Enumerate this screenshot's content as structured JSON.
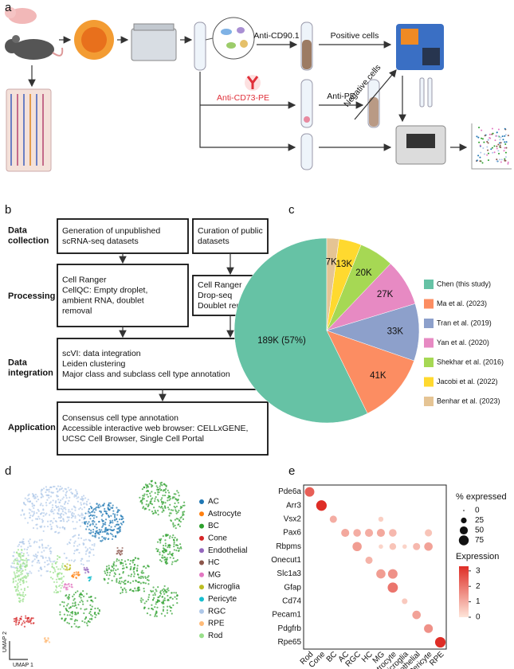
{
  "figure": {
    "panel_a": {
      "label": "a",
      "anti_cd90": "Anti-CD90.1",
      "positive": "Positive cells",
      "anti_cd73": "Anti-CD73-PE",
      "anti_pe": "Anti-PE",
      "negative": "Negative cells"
    },
    "panel_b": {
      "label": "b",
      "row_labels": [
        [
          "Data",
          "collection"
        ],
        [
          "Processing"
        ],
        [
          "Data",
          "integration"
        ],
        [
          "Application"
        ]
      ],
      "boxes": [
        [
          "Generation of unpublished",
          "scRNA-seq datasets"
        ],
        [
          "Curation of public",
          "datasets"
        ],
        [
          "Cell Ranger",
          "CellQC: Empty droplet,",
          "ambient RNA, doublet",
          "removal"
        ],
        [
          "Cell Ranger",
          "Drop-seq",
          "Doublet removal"
        ],
        [
          "scVI: data integration",
          "Leiden clustering",
          "Major class and subclass cell type annotation"
        ],
        [
          "Consensus cell type annotation",
          "Accessible interactive web browser: CELLxGENE,",
          "UCSC Cell Browser, Single Cell Portal"
        ]
      ]
    },
    "panel_d": {
      "label": "d",
      "x_label": "UMAP 1",
      "y_label": "UMAP 2",
      "legend": [
        {
          "name": "AC",
          "color": "#1f77b4"
        },
        {
          "name": "Astrocyte",
          "color": "#ff7f0e"
        },
        {
          "name": "BC",
          "color": "#2ca02c"
        },
        {
          "name": "Cone",
          "color": "#d62728"
        },
        {
          "name": "Endothelial",
          "color": "#9467bd"
        },
        {
          "name": "HC",
          "color": "#8c564b"
        },
        {
          "name": "MG",
          "color": "#e377c2"
        },
        {
          "name": "Microglia",
          "color": "#bcbd22"
        },
        {
          "name": "Pericyte",
          "color": "#17becf"
        },
        {
          "name": "RGC",
          "color": "#aec7e8"
        },
        {
          "name": "RPE",
          "color": "#ffbb78"
        },
        {
          "name": "Rod",
          "color": "#98df8a"
        }
      ]
    }
  },
  "chart_data": [
    {
      "type": "pie",
      "label": "c",
      "categories": [
        "Chen (this study)",
        "Ma et al. (2023)",
        "Tran et al. (2019)",
        "Yan et al. (2020)",
        "Shekhar et al. (2016)",
        "Jacobi et al. (2022)",
        "Benhar et al. (2023)"
      ],
      "values": [
        189,
        41,
        33,
        27,
        20,
        13,
        7
      ],
      "value_labels": [
        "189K (57%)",
        "41K",
        "33K",
        "27K",
        "20K",
        "13K",
        "7K"
      ],
      "colors": [
        "#66c2a5",
        "#fc8d62",
        "#8da0cb",
        "#e78ac3",
        "#a6d854",
        "#ffd92f",
        "#e5c494"
      ]
    },
    {
      "type": "dotplot",
      "label": "e",
      "x": [
        "Rod",
        "Cone",
        "BC",
        "AC",
        "RGC",
        "HC",
        "MG",
        "Astrocyte",
        "Microglia",
        "Endothelial",
        "Pericyte",
        "RPE"
      ],
      "y": [
        "Pde6a",
        "Arr3",
        "Vsx2",
        "Pax6",
        "Rbpms",
        "Onecut1",
        "Slc1a3",
        "Gfap",
        "Cd74",
        "Pecam1",
        "Pdgfrb",
        "Rpe65"
      ],
      "points": [
        {
          "x": "Rod",
          "y": "Pde6a",
          "size": 70,
          "value": 2.4
        },
        {
          "x": "Cone",
          "y": "Arr3",
          "size": 85,
          "value": 3.3
        },
        {
          "x": "BC",
          "y": "Vsx2",
          "size": 40,
          "value": 1.0
        },
        {
          "x": "MG",
          "y": "Vsx2",
          "size": 20,
          "value": 0.4
        },
        {
          "x": "AC",
          "y": "Pax6",
          "size": 50,
          "value": 1.1
        },
        {
          "x": "RGC",
          "y": "Pax6",
          "size": 45,
          "value": 1.0
        },
        {
          "x": "HC",
          "y": "Pax6",
          "size": 50,
          "value": 1.0
        },
        {
          "x": "MG",
          "y": "Pax6",
          "size": 50,
          "value": 1.1
        },
        {
          "x": "Astrocyte",
          "y": "Pax6",
          "size": 45,
          "value": 0.8
        },
        {
          "x": "Pericyte",
          "y": "Pax6",
          "size": 40,
          "value": 0.6
        },
        {
          "x": "RGC",
          "y": "Rbpms",
          "size": 65,
          "value": 1.3
        },
        {
          "x": "MG",
          "y": "Rbpms",
          "size": 15,
          "value": 0.3
        },
        {
          "x": "Astrocyte",
          "y": "Rbpms",
          "size": 35,
          "value": 0.6
        },
        {
          "x": "Microglia",
          "y": "Rbpms",
          "size": 15,
          "value": 0.3
        },
        {
          "x": "Endothelial",
          "y": "Rbpms",
          "size": 40,
          "value": 0.8
        },
        {
          "x": "Pericyte",
          "y": "Rbpms",
          "size": 55,
          "value": 1.2
        },
        {
          "x": "HC",
          "y": "Onecut1",
          "size": 40,
          "value": 0.9
        },
        {
          "x": "MG",
          "y": "Slc1a3",
          "size": 65,
          "value": 1.3
        },
        {
          "x": "Astrocyte",
          "y": "Slc1a3",
          "size": 70,
          "value": 1.5
        },
        {
          "x": "Astrocyte",
          "y": "Gfap",
          "size": 80,
          "value": 2.0
        },
        {
          "x": "Microglia",
          "y": "Cd74",
          "size": 25,
          "value": 0.5
        },
        {
          "x": "Endothelial",
          "y": "Pecam1",
          "size": 55,
          "value": 1.2
        },
        {
          "x": "Pericyte",
          "y": "Pdgfrb",
          "size": 60,
          "value": 1.5
        },
        {
          "x": "RPE",
          "y": "Rpe65",
          "size": 85,
          "value": 3.3
        }
      ],
      "size_title": "% expressed",
      "size_ticks": [
        0,
        25,
        50,
        75
      ],
      "color_title": "Expression",
      "clim": [
        0,
        3.3
      ],
      "cticks": [
        0,
        1,
        2,
        3
      ],
      "colors": [
        "#fee5d9",
        "#de2d26"
      ]
    }
  ]
}
